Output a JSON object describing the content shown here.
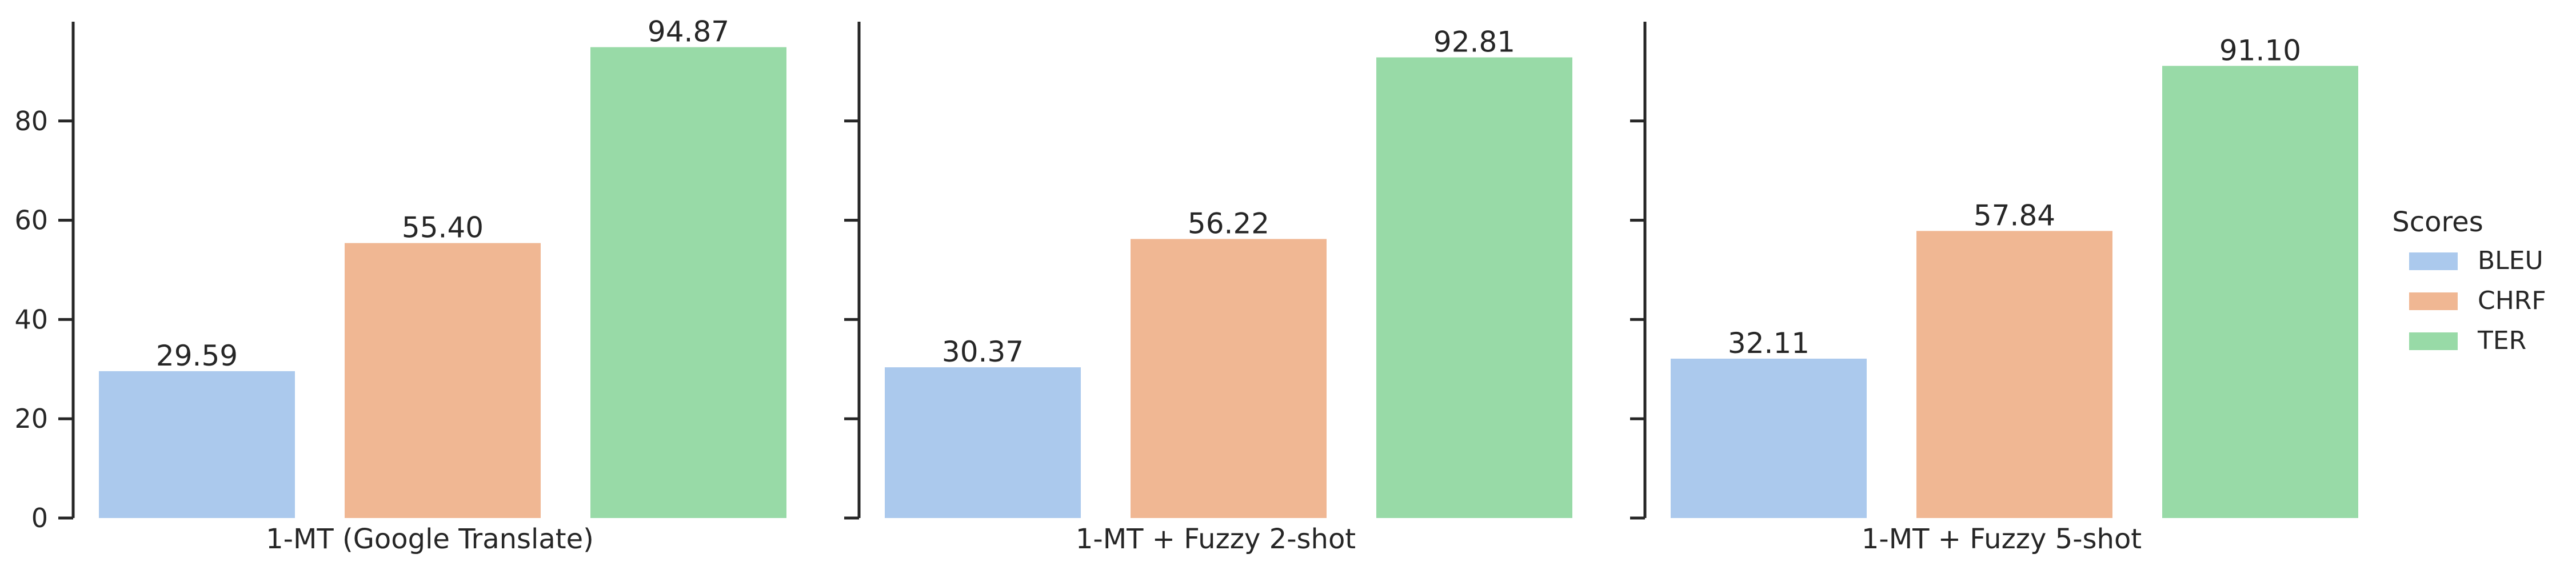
{
  "chart_data": {
    "type": "bar",
    "legend": {
      "title": "Scores",
      "placement": "right",
      "entries": [
        {
          "name": "BLEU",
          "color": "#abc9ed"
        },
        {
          "name": "CHRF",
          "color": "#f0b793"
        },
        {
          "name": "TER",
          "color": "#98daa7"
        }
      ]
    },
    "y_ticks": [
      "0",
      "20",
      "40",
      "60",
      "80"
    ],
    "ylim": [
      0,
      100
    ],
    "grid": false,
    "panels": [
      {
        "category": "1-MT (Google Translate)",
        "series": [
          {
            "name": "BLEU",
            "value": 29.59,
            "label": "29.59"
          },
          {
            "name": "CHRF",
            "value": 55.4,
            "label": "55.40"
          },
          {
            "name": "TER",
            "value": 94.87,
            "label": "94.87"
          }
        ]
      },
      {
        "category": "1-MT + Fuzzy 2-shot",
        "series": [
          {
            "name": "BLEU",
            "value": 30.37,
            "label": "30.37"
          },
          {
            "name": "CHRF",
            "value": 56.22,
            "label": "56.22"
          },
          {
            "name": "TER",
            "value": 92.81,
            "label": "92.81"
          }
        ]
      },
      {
        "category": "1-MT + Fuzzy 5-shot",
        "series": [
          {
            "name": "BLEU",
            "value": 32.11,
            "label": "32.11"
          },
          {
            "name": "CHRF",
            "value": 57.84,
            "label": "57.84"
          },
          {
            "name": "TER",
            "value": 91.1,
            "label": "91.10"
          }
        ]
      }
    ]
  }
}
